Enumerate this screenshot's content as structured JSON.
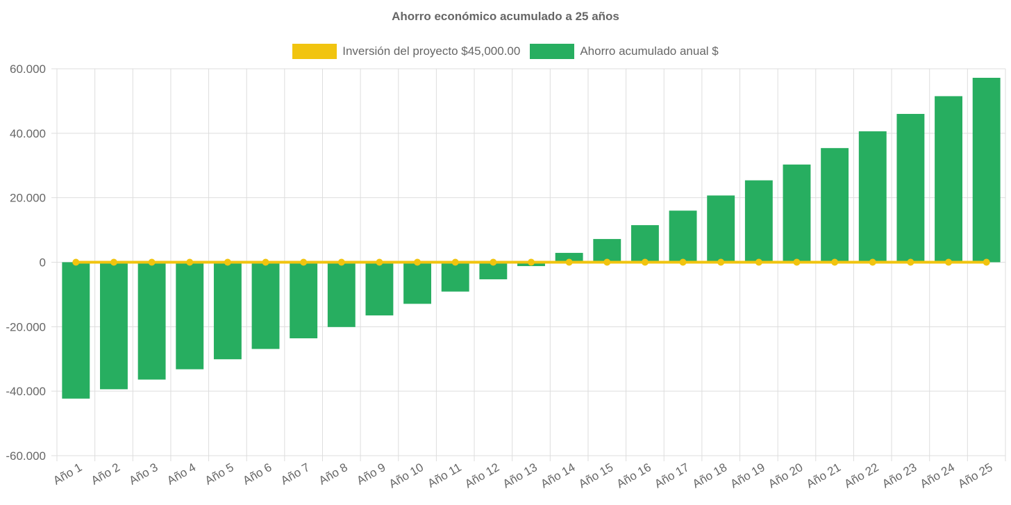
{
  "chart_data": {
    "type": "bar",
    "title": "Ahorro económico acumulado a 25 años",
    "categories": [
      "Año 1",
      "Año 2",
      "Año 3",
      "Año 4",
      "Año 5",
      "Año 6",
      "Año 7",
      "Año 8",
      "Año 9",
      "Año 10",
      "Año 11",
      "Año 12",
      "Año 13",
      "Año 14",
      "Año 15",
      "Año 16",
      "Año 17",
      "Año 18",
      "Año 19",
      "Año 20",
      "Año 21",
      "Año 22",
      "Año 23",
      "Año 24",
      "Año 25"
    ],
    "series": [
      {
        "name": "Inversión del proyecto $45,000.00",
        "type": "line",
        "color": "#f1c40f",
        "values": [
          0,
          0,
          0,
          0,
          0,
          0,
          0,
          0,
          0,
          0,
          0,
          0,
          0,
          0,
          0,
          0,
          0,
          0,
          0,
          0,
          0,
          0,
          0,
          0,
          0
        ]
      },
      {
        "name": "Ahorro acumulado anual $",
        "type": "bar",
        "color": "#27ae60",
        "values": [
          -42300,
          -39400,
          -36400,
          -33200,
          -30100,
          -26900,
          -23600,
          -20100,
          -16500,
          -12900,
          -9100,
          -5300,
          -1200,
          2900,
          7200,
          11500,
          16000,
          20700,
          25400,
          30300,
          35400,
          40600,
          46000,
          51500,
          57200
        ]
      }
    ],
    "ylim": [
      -60000,
      60000
    ],
    "yticks": [
      "60.000",
      "40.000",
      "20.000",
      "0",
      "-20.000",
      "-40.000",
      "-60.000"
    ],
    "ytick_values": [
      60000,
      40000,
      20000,
      0,
      -20000,
      -40000,
      -60000
    ],
    "grid": true,
    "legend_position": "top"
  }
}
